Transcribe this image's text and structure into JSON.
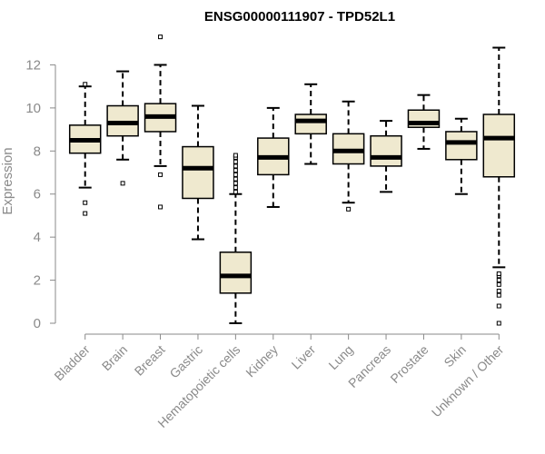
{
  "chart_data": {
    "type": "box",
    "title": "ENSG00000111907 - TPD52L1",
    "ylabel": "Expression",
    "ylim": [
      0,
      13.2
    ],
    "yticks": [
      0,
      2,
      4,
      6,
      8,
      10,
      12
    ],
    "box_fill": "#efe9cf",
    "box_stroke": "#000000",
    "axis_color": "#8a8a8a",
    "categories": [
      "Bladder",
      "Brain",
      "Breast",
      "Gastric",
      "Hematopoietic cells",
      "Kidney",
      "Liver",
      "Lung",
      "Pancreas",
      "Prostate",
      "Skin",
      "Unknown / Other"
    ],
    "boxes": [
      {
        "name": "Bladder",
        "whisker_low": 6.3,
        "q1": 7.9,
        "median": 8.5,
        "q3": 9.2,
        "whisker_high": 11.0,
        "outliers": [
          5.6,
          5.1,
          11.1
        ]
      },
      {
        "name": "Brain",
        "whisker_low": 7.6,
        "q1": 8.7,
        "median": 9.3,
        "q3": 10.1,
        "whisker_high": 11.7,
        "outliers": [
          6.5
        ]
      },
      {
        "name": "Breast",
        "whisker_low": 7.3,
        "q1": 8.9,
        "median": 9.6,
        "q3": 10.2,
        "whisker_high": 12.0,
        "outliers": [
          6.9,
          5.4,
          13.3
        ]
      },
      {
        "name": "Gastric",
        "whisker_low": 3.9,
        "q1": 5.8,
        "median": 7.2,
        "q3": 8.2,
        "whisker_high": 10.1,
        "outliers": []
      },
      {
        "name": "Hematopoietic cells",
        "whisker_low": 0.0,
        "q1": 1.4,
        "median": 2.2,
        "q3": 3.3,
        "whisker_high": 6.0,
        "outliers": [
          6.1,
          6.3,
          6.5,
          6.7,
          6.9,
          7.1,
          7.3,
          7.5,
          7.7,
          7.8
        ]
      },
      {
        "name": "Kidney",
        "whisker_low": 5.4,
        "q1": 6.9,
        "median": 7.7,
        "q3": 8.6,
        "whisker_high": 10.0,
        "outliers": []
      },
      {
        "name": "Liver",
        "whisker_low": 7.4,
        "q1": 8.8,
        "median": 9.4,
        "q3": 9.7,
        "whisker_high": 11.1,
        "outliers": []
      },
      {
        "name": "Lung",
        "whisker_low": 5.6,
        "q1": 7.4,
        "median": 8.0,
        "q3": 8.8,
        "whisker_high": 10.3,
        "outliers": [
          5.3
        ]
      },
      {
        "name": "Pancreas",
        "whisker_low": 6.1,
        "q1": 7.3,
        "median": 7.7,
        "q3": 8.7,
        "whisker_high": 9.4,
        "outliers": []
      },
      {
        "name": "Prostate",
        "whisker_low": 8.1,
        "q1": 9.1,
        "median": 9.3,
        "q3": 9.9,
        "whisker_high": 10.6,
        "outliers": []
      },
      {
        "name": "Skin",
        "whisker_low": 6.0,
        "q1": 7.6,
        "median": 8.4,
        "q3": 8.9,
        "whisker_high": 9.5,
        "outliers": []
      },
      {
        "name": "Unknown / Other",
        "whisker_low": 2.6,
        "q1": 6.8,
        "median": 8.6,
        "q3": 9.7,
        "whisker_high": 12.8,
        "outliers": [
          0.0,
          0.8,
          1.3,
          1.5,
          1.8,
          2.0,
          2.2,
          2.3
        ]
      }
    ]
  }
}
